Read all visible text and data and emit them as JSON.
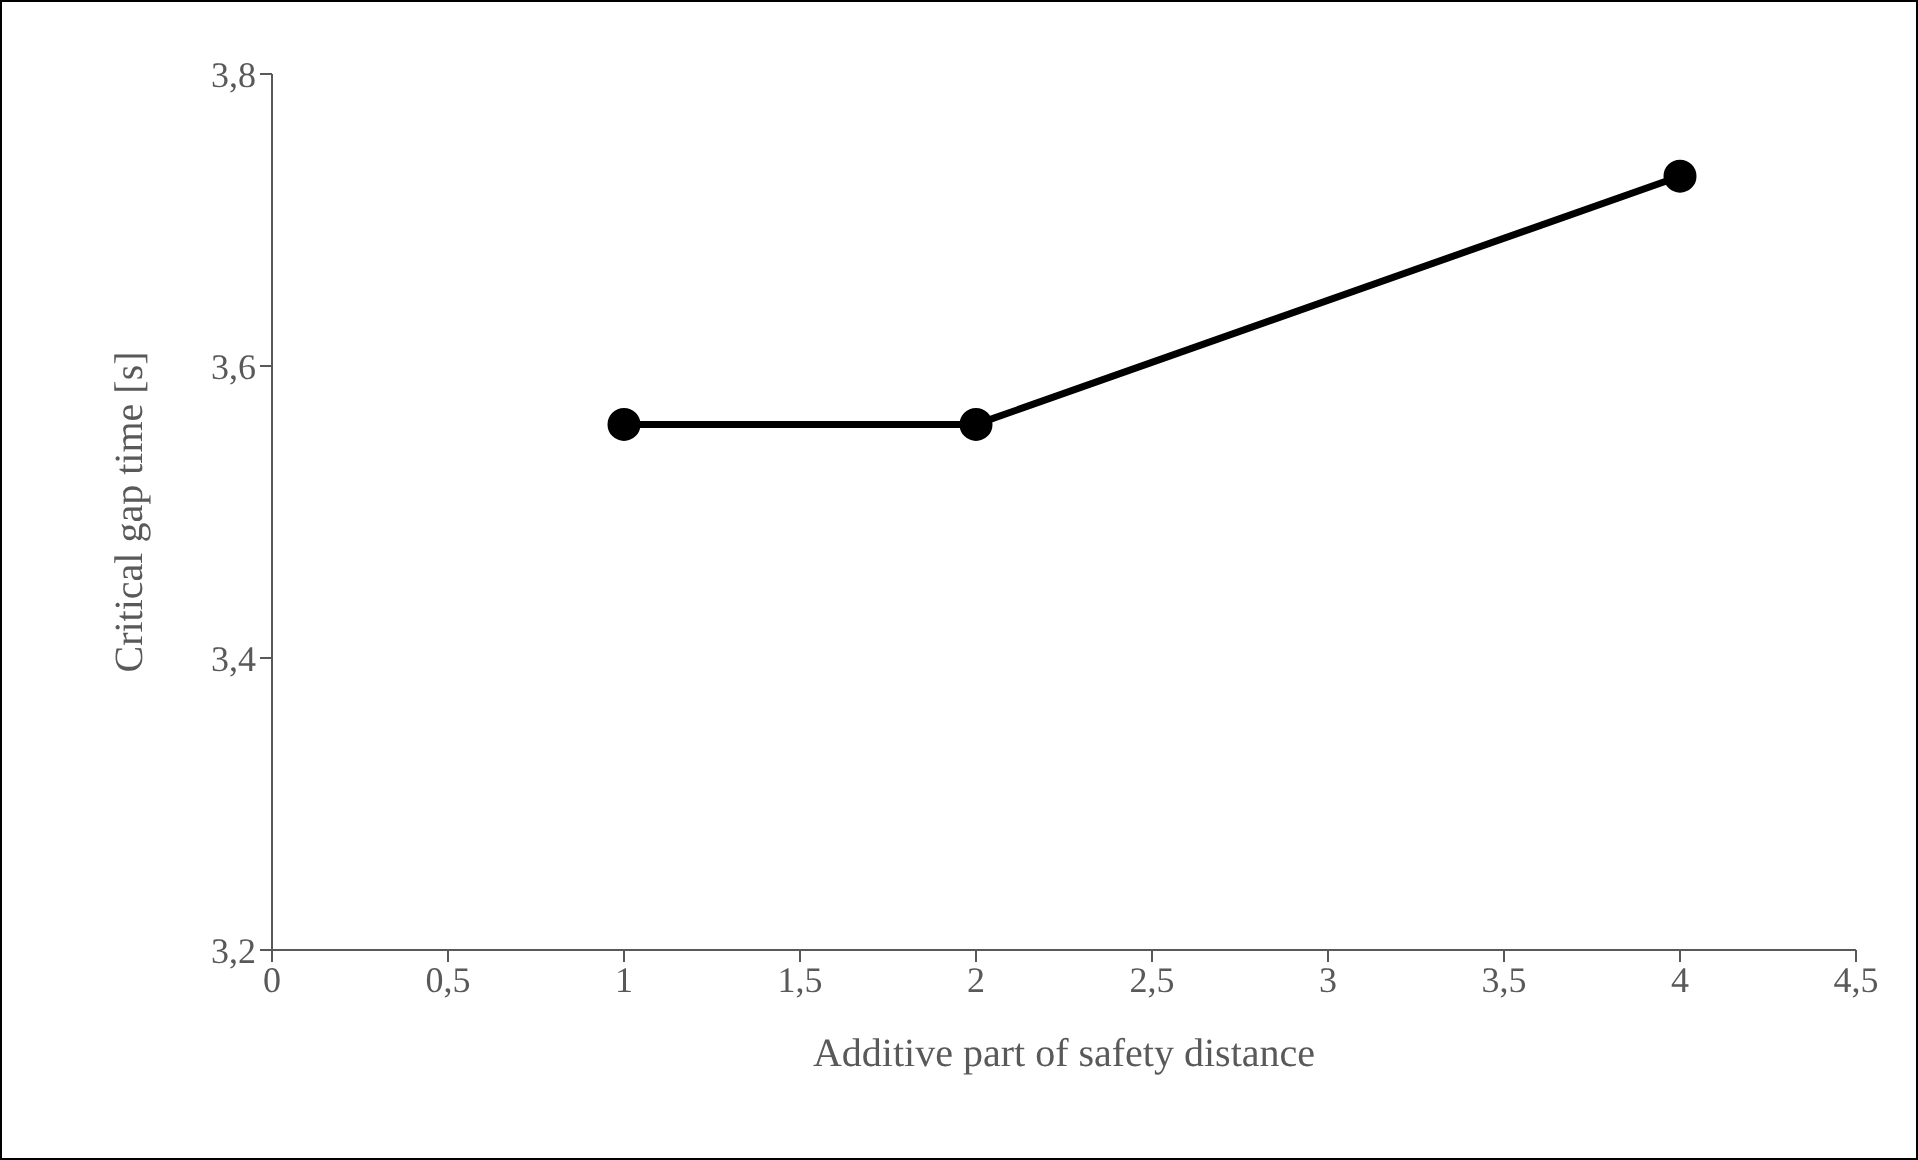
{
  "chart_data": {
    "type": "line",
    "xlabel": "Additive part of safety distance",
    "ylabel": "Critical gap time [s]",
    "x": [
      1,
      2,
      4
    ],
    "series": [
      {
        "color": "#000000",
        "values": [
          3.56,
          3.56,
          3.73
        ]
      }
    ],
    "xlim": [
      0,
      4.5
    ],
    "xticks": [
      0,
      {
        "value": 0.5,
        "label": "0,5"
      },
      1,
      {
        "value": 1.5,
        "label": "1,5"
      },
      2,
      {
        "value": 2.5,
        "label": "2,5"
      },
      3,
      {
        "value": 3.5,
        "label": "3,5"
      },
      4,
      {
        "value": 4.5,
        "label": "4,5"
      }
    ],
    "ylim": [
      3.2,
      3.8
    ],
    "yticks": [
      {
        "value": 3.2,
        "label": "3,2"
      },
      {
        "value": 3.4,
        "label": "3,4"
      },
      {
        "value": 3.6,
        "label": "3,6"
      },
      {
        "value": 3.8,
        "label": "3,8"
      }
    ],
    "grid": false,
    "legend": false,
    "marker": "circle",
    "line_style": "solid"
  }
}
